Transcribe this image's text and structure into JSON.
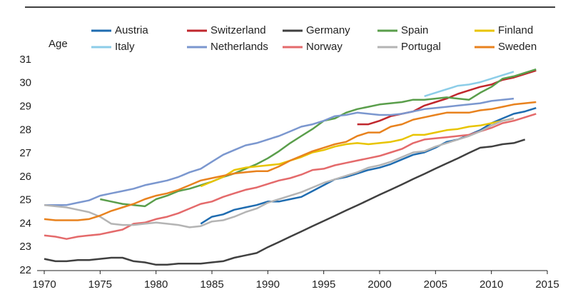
{
  "chart_data": {
    "type": "line",
    "y_label": "Age",
    "x": [
      1970,
      1971,
      1972,
      1973,
      1974,
      1975,
      1976,
      1977,
      1978,
      1979,
      1980,
      1981,
      1982,
      1983,
      1984,
      1985,
      1986,
      1987,
      1988,
      1989,
      1990,
      1991,
      1992,
      1993,
      1994,
      1995,
      1996,
      1997,
      1998,
      1999,
      2000,
      2001,
      2002,
      2003,
      2004,
      2005,
      2006,
      2007,
      2008,
      2009,
      2010,
      2011,
      2012,
      2013,
      2014
    ],
    "xlim": [
      1970,
      2015
    ],
    "xticks": [
      1970,
      1975,
      1980,
      1985,
      1990,
      1995,
      2000,
      2005,
      2010,
      2015
    ],
    "ylim": [
      22,
      31
    ],
    "yticks": [
      22,
      23,
      24,
      25,
      26,
      27,
      28,
      29,
      30,
      31
    ],
    "series": [
      {
        "name": "Austria",
        "color": "#1f6cb0",
        "values": [
          null,
          null,
          null,
          null,
          null,
          null,
          null,
          null,
          null,
          null,
          null,
          null,
          null,
          null,
          24.0,
          24.3,
          24.4,
          24.6,
          24.7,
          24.8,
          24.95,
          24.95,
          25.05,
          25.15,
          25.4,
          25.65,
          25.9,
          26.0,
          26.15,
          26.3,
          26.4,
          26.55,
          26.75,
          26.95,
          27.05,
          27.25,
          27.5,
          27.6,
          27.8,
          28.0,
          28.3,
          28.5,
          28.7,
          28.8,
          28.95
        ]
      },
      {
        "name": "Switzerland",
        "color": "#c0272d",
        "values": [
          null,
          null,
          null,
          null,
          null,
          null,
          null,
          null,
          null,
          null,
          null,
          null,
          null,
          null,
          null,
          null,
          null,
          null,
          null,
          null,
          null,
          null,
          null,
          null,
          null,
          null,
          null,
          null,
          28.25,
          28.25,
          28.4,
          28.6,
          28.7,
          28.8,
          29.05,
          29.2,
          29.35,
          29.55,
          29.7,
          29.85,
          29.95,
          30.15,
          30.25,
          30.4,
          30.55
        ]
      },
      {
        "name": "Germany",
        "color": "#404040",
        "values": [
          22.5,
          22.4,
          22.4,
          22.45,
          22.45,
          22.5,
          22.55,
          22.55,
          22.4,
          22.35,
          22.25,
          22.25,
          22.3,
          22.3,
          22.3,
          22.35,
          22.4,
          22.55,
          22.65,
          22.75,
          23.0,
          23.22,
          23.45,
          23.67,
          23.9,
          24.12,
          24.34,
          24.57,
          24.79,
          25.01,
          25.24,
          25.46,
          25.68,
          25.91,
          26.13,
          26.36,
          26.58,
          26.8,
          27.03,
          27.25,
          27.3,
          27.4,
          27.45,
          27.6,
          null
        ]
      },
      {
        "name": "Spain",
        "color": "#5a9e4b",
        "values": [
          null,
          null,
          null,
          null,
          null,
          25.05,
          24.95,
          24.85,
          24.8,
          24.75,
          25.05,
          25.2,
          25.4,
          25.5,
          25.65,
          25.8,
          26.0,
          26.15,
          26.35,
          26.55,
          26.8,
          27.1,
          27.45,
          27.75,
          28.05,
          28.4,
          28.5,
          28.75,
          28.9,
          29.0,
          29.1,
          29.15,
          29.2,
          29.3,
          29.3,
          29.35,
          29.4,
          29.35,
          29.3,
          29.6,
          29.85,
          30.2,
          30.3,
          30.45,
          30.6
        ]
      },
      {
        "name": "Finland",
        "color": "#e8c400",
        "values": [
          null,
          null,
          null,
          null,
          null,
          null,
          null,
          null,
          null,
          null,
          null,
          null,
          null,
          null,
          25.6,
          25.8,
          26.0,
          26.3,
          26.4,
          26.45,
          26.5,
          26.55,
          26.7,
          26.85,
          27.05,
          27.15,
          27.3,
          27.4,
          27.45,
          27.4,
          27.45,
          27.5,
          27.6,
          27.8,
          27.8,
          27.9,
          28.0,
          28.05,
          28.15,
          28.2,
          28.3,
          28.4,
          28.5,
          null,
          null
        ]
      },
      {
        "name": "Italy",
        "color": "#8ccde8",
        "values": [
          24.8,
          24.8,
          24.8,
          null,
          null,
          null,
          null,
          null,
          null,
          null,
          null,
          null,
          null,
          null,
          null,
          null,
          null,
          null,
          null,
          null,
          null,
          null,
          null,
          null,
          null,
          null,
          null,
          null,
          null,
          null,
          null,
          null,
          null,
          null,
          29.45,
          29.6,
          29.75,
          29.9,
          29.95,
          30.05,
          30.2,
          30.35,
          30.5,
          null,
          null
        ]
      },
      {
        "name": "Netherlands",
        "color": "#7b97cf",
        "values": [
          24.8,
          24.8,
          24.8,
          24.9,
          25.0,
          25.2,
          25.3,
          25.4,
          25.5,
          25.65,
          25.75,
          25.85,
          26.0,
          26.2,
          26.35,
          26.65,
          26.95,
          27.15,
          27.35,
          27.45,
          27.6,
          27.75,
          27.95,
          28.15,
          28.25,
          28.4,
          28.6,
          28.65,
          28.75,
          28.7,
          28.65,
          28.65,
          28.7,
          28.8,
          28.9,
          28.95,
          29.0,
          29.05,
          29.1,
          29.15,
          29.25,
          29.3,
          29.35,
          null,
          null
        ]
      },
      {
        "name": "Norway",
        "color": "#e46a6b",
        "values": [
          23.5,
          23.45,
          23.35,
          23.45,
          23.5,
          23.55,
          23.65,
          23.75,
          24.0,
          24.05,
          24.2,
          24.3,
          24.45,
          24.65,
          24.85,
          24.95,
          25.15,
          25.3,
          25.45,
          25.55,
          25.7,
          25.85,
          25.95,
          26.1,
          26.3,
          26.35,
          26.5,
          26.6,
          26.7,
          26.8,
          26.9,
          27.05,
          27.2,
          27.45,
          27.6,
          27.65,
          27.7,
          27.75,
          27.8,
          27.95,
          28.1,
          28.3,
          28.4,
          28.55,
          28.7
        ]
      },
      {
        "name": "Portugal",
        "color": "#b4b4b4",
        "values": [
          24.8,
          24.75,
          24.7,
          24.6,
          24.5,
          24.3,
          24.0,
          23.95,
          23.95,
          24.0,
          24.05,
          24.0,
          23.95,
          23.85,
          23.9,
          24.1,
          24.15,
          24.3,
          24.5,
          24.65,
          24.9,
          25.05,
          25.2,
          25.35,
          25.55,
          25.75,
          25.9,
          26.05,
          26.2,
          26.4,
          26.5,
          26.65,
          26.85,
          27.05,
          27.1,
          27.3,
          27.45,
          27.6,
          27.75,
          27.95,
          28.2,
          28.4,
          28.5,
          null,
          null
        ]
      },
      {
        "name": "Sweden",
        "color": "#e8821e",
        "values": [
          24.2,
          24.15,
          24.15,
          24.15,
          24.2,
          24.35,
          24.55,
          24.7,
          24.85,
          25.05,
          25.2,
          25.3,
          25.45,
          25.65,
          25.85,
          25.95,
          26.05,
          26.15,
          26.2,
          26.25,
          26.25,
          26.45,
          26.7,
          26.9,
          27.1,
          27.25,
          27.4,
          27.5,
          27.75,
          27.9,
          27.9,
          28.15,
          28.25,
          28.45,
          28.55,
          28.65,
          28.75,
          28.75,
          28.75,
          28.85,
          28.9,
          29.0,
          29.1,
          29.15,
          29.2
        ]
      }
    ]
  }
}
